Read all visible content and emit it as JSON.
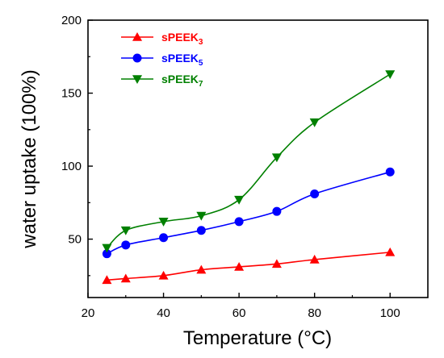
{
  "chart_data": {
    "type": "line",
    "xlabel": "Temperature (°C)",
    "ylabel": "water uptake (100%)",
    "xlim": [
      20,
      110
    ],
    "ylim": [
      10,
      200
    ],
    "xticks": [
      20,
      40,
      60,
      80,
      100
    ],
    "yticks": [
      50,
      100,
      150,
      200
    ],
    "grid": false,
    "legend_position": "top-left",
    "x": [
      25,
      30,
      40,
      50,
      60,
      70,
      80,
      100
    ],
    "series": [
      {
        "name": "sPEEK",
        "sub": "3",
        "color": "#ff0000",
        "marker": "triangle-up",
        "values": [
          22,
          23,
          25,
          29,
          31,
          33,
          36,
          41
        ]
      },
      {
        "name": "sPEEK",
        "sub": "5",
        "color": "#0000ff",
        "marker": "circle",
        "values": [
          40,
          46,
          51,
          56,
          62,
          69,
          81,
          96
        ]
      },
      {
        "name": "sPEEK",
        "sub": "7",
        "color": "#008000",
        "marker": "triangle-down",
        "values": [
          44,
          56,
          62,
          66,
          77,
          106,
          130,
          163
        ]
      }
    ]
  }
}
